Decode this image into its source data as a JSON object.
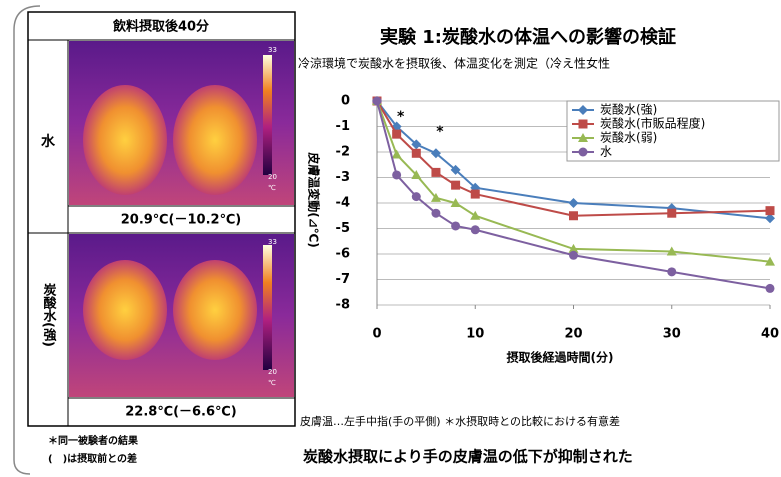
{
  "panel": {
    "header": "飲料摂取後40分",
    "rows": [
      {
        "label": "水",
        "caption": "20.9℃(－10.2℃)"
      },
      {
        "label": "炭酸水(強)",
        "caption": "22.8℃(－6.6℃)"
      }
    ],
    "scale_max": "33",
    "scale_min": "20",
    "scale_unit": "℃",
    "footnotes": [
      "＊同一被験者の結果",
      "(　)は摂取前との差"
    ]
  },
  "chart_data": {
    "type": "line",
    "title": "実験 1:炭酸水の体温への影響の検証",
    "subtitle": "冷涼環境で炭酸水を摂取後、体温変化を測定（冷え性女性",
    "x_label": "摂取後経過時間(分)",
    "y_label": "皮膚温変動(⊿℃)",
    "x": [
      0,
      2,
      4,
      6,
      8,
      10,
      20,
      30,
      40
    ],
    "series": [
      {
        "name": "炭酸水(強)",
        "color": "#4a7ebb",
        "marker": "diamond",
        "values": [
          0,
          -1,
          -1.7,
          -2.05,
          -2.7,
          -3.4,
          -4,
          -4.2,
          -4.6
        ]
      },
      {
        "name": "炭酸水(市販品程度)",
        "color": "#be4b48",
        "marker": "square",
        "values": [
          0,
          -1.3,
          -2.05,
          -2.8,
          -3.3,
          -3.65,
          -4.5,
          -4.4,
          -4.3
        ]
      },
      {
        "name": "炭酸水(弱)",
        "color": "#98b954",
        "marker": "triangle",
        "values": [
          0,
          -2.1,
          -2.9,
          -3.8,
          -4,
          -4.5,
          -5.8,
          -5.9,
          -6.3
        ]
      },
      {
        "name": "水",
        "color": "#7d60a0",
        "marker": "circle",
        "values": [
          0,
          -2.9,
          -3.75,
          -4.4,
          -4.9,
          -5.05,
          -6.05,
          -6.7,
          -7.35
        ]
      }
    ],
    "xlim": [
      0,
      40
    ],
    "xticks": [
      0,
      10,
      20,
      30,
      40
    ],
    "ylim": [
      -8,
      0
    ],
    "yticks": [
      0,
      -1,
      -2,
      -3,
      -4,
      -5,
      -6,
      -7,
      -8
    ],
    "grid": true,
    "legend": "top-right",
    "annotations": [
      {
        "text": "*",
        "x": 2
      },
      {
        "text": "*",
        "x": 6
      }
    ],
    "note": "皮膚温…左手中指(手の平側) ＊水摂取時との比較における有意差",
    "conclusion": "炭酸水摂取により手の皮膚温の低下が抑制された"
  }
}
